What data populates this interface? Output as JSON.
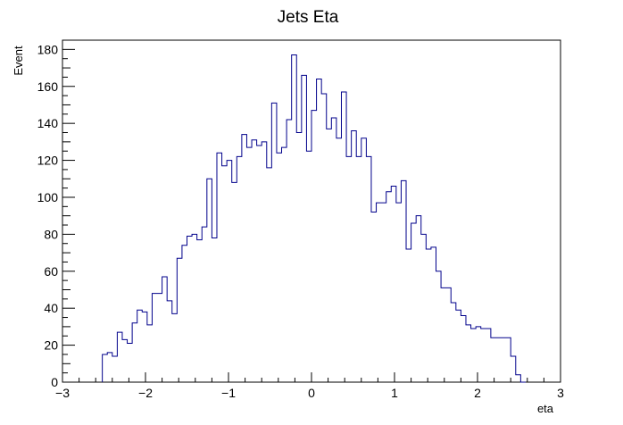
{
  "chart_data": {
    "type": "histogram",
    "title": "Jets Eta",
    "xlabel": "eta",
    "ylabel": "Event",
    "xlim": [
      -3,
      3
    ],
    "ylim": [
      0,
      185
    ],
    "grid": false,
    "legend": "none",
    "line_color": "#00008b",
    "bin_width": 0.06,
    "x_ticks": [
      -3,
      -2,
      -1,
      0,
      1,
      2,
      3
    ],
    "x_tick_labels": [
      "−3",
      "−2",
      "−1",
      "0",
      "1",
      "2",
      "3"
    ],
    "y_ticks": [
      0,
      20,
      40,
      60,
      80,
      100,
      120,
      140,
      160,
      180
    ],
    "y_tick_labels": [
      "0",
      "20",
      "40",
      "60",
      "80",
      "100",
      "120",
      "140",
      "160",
      "180"
    ],
    "x_edges": [
      -2.52,
      -2.46,
      -2.4,
      -2.34,
      -2.28,
      -2.22,
      -2.16,
      -2.1,
      -2.04,
      -1.98,
      -1.92,
      -1.86,
      -1.8,
      -1.74,
      -1.68,
      -1.62,
      -1.56,
      -1.5,
      -1.44,
      -1.38,
      -1.32,
      -1.26,
      -1.2,
      -1.14,
      -1.08,
      -1.02,
      -0.96,
      -0.9,
      -0.84,
      -0.78,
      -0.72,
      -0.66,
      -0.6,
      -0.54,
      -0.48,
      -0.42,
      -0.36,
      -0.3,
      -0.24,
      -0.18,
      -0.12,
      -0.06,
      0.0,
      0.06,
      0.12,
      0.18,
      0.24,
      0.3,
      0.36,
      0.42,
      0.48,
      0.54,
      0.6,
      0.66,
      0.72,
      0.78,
      0.84,
      0.9,
      0.96,
      1.02,
      1.08,
      1.14,
      1.2,
      1.26,
      1.32,
      1.38,
      1.44,
      1.5,
      1.56,
      1.62,
      1.68,
      1.74,
      1.8,
      1.86,
      1.92,
      1.98,
      2.04,
      2.1,
      2.16,
      2.22,
      2.28,
      2.34,
      2.4,
      2.46,
      2.52,
      2.58
    ],
    "values": [
      15,
      16,
      14,
      27,
      23,
      21,
      32,
      39,
      38,
      31,
      48,
      48,
      57,
      44,
      37,
      67,
      74,
      79,
      80,
      77,
      84,
      110,
      78,
      124,
      117,
      120,
      108,
      122,
      134,
      127,
      131,
      128,
      130,
      116,
      151,
      124,
      127,
      142,
      177,
      135,
      166,
      125,
      147,
      164,
      156,
      137,
      143,
      132,
      157,
      122,
      136,
      122,
      132,
      122,
      92,
      97,
      97,
      103,
      106,
      97,
      109,
      72,
      86,
      90,
      80,
      72,
      73,
      60,
      51,
      51,
      43,
      39,
      36,
      31,
      29,
      30,
      29,
      29,
      24,
      24,
      24,
      24,
      14,
      4,
      0
    ]
  }
}
